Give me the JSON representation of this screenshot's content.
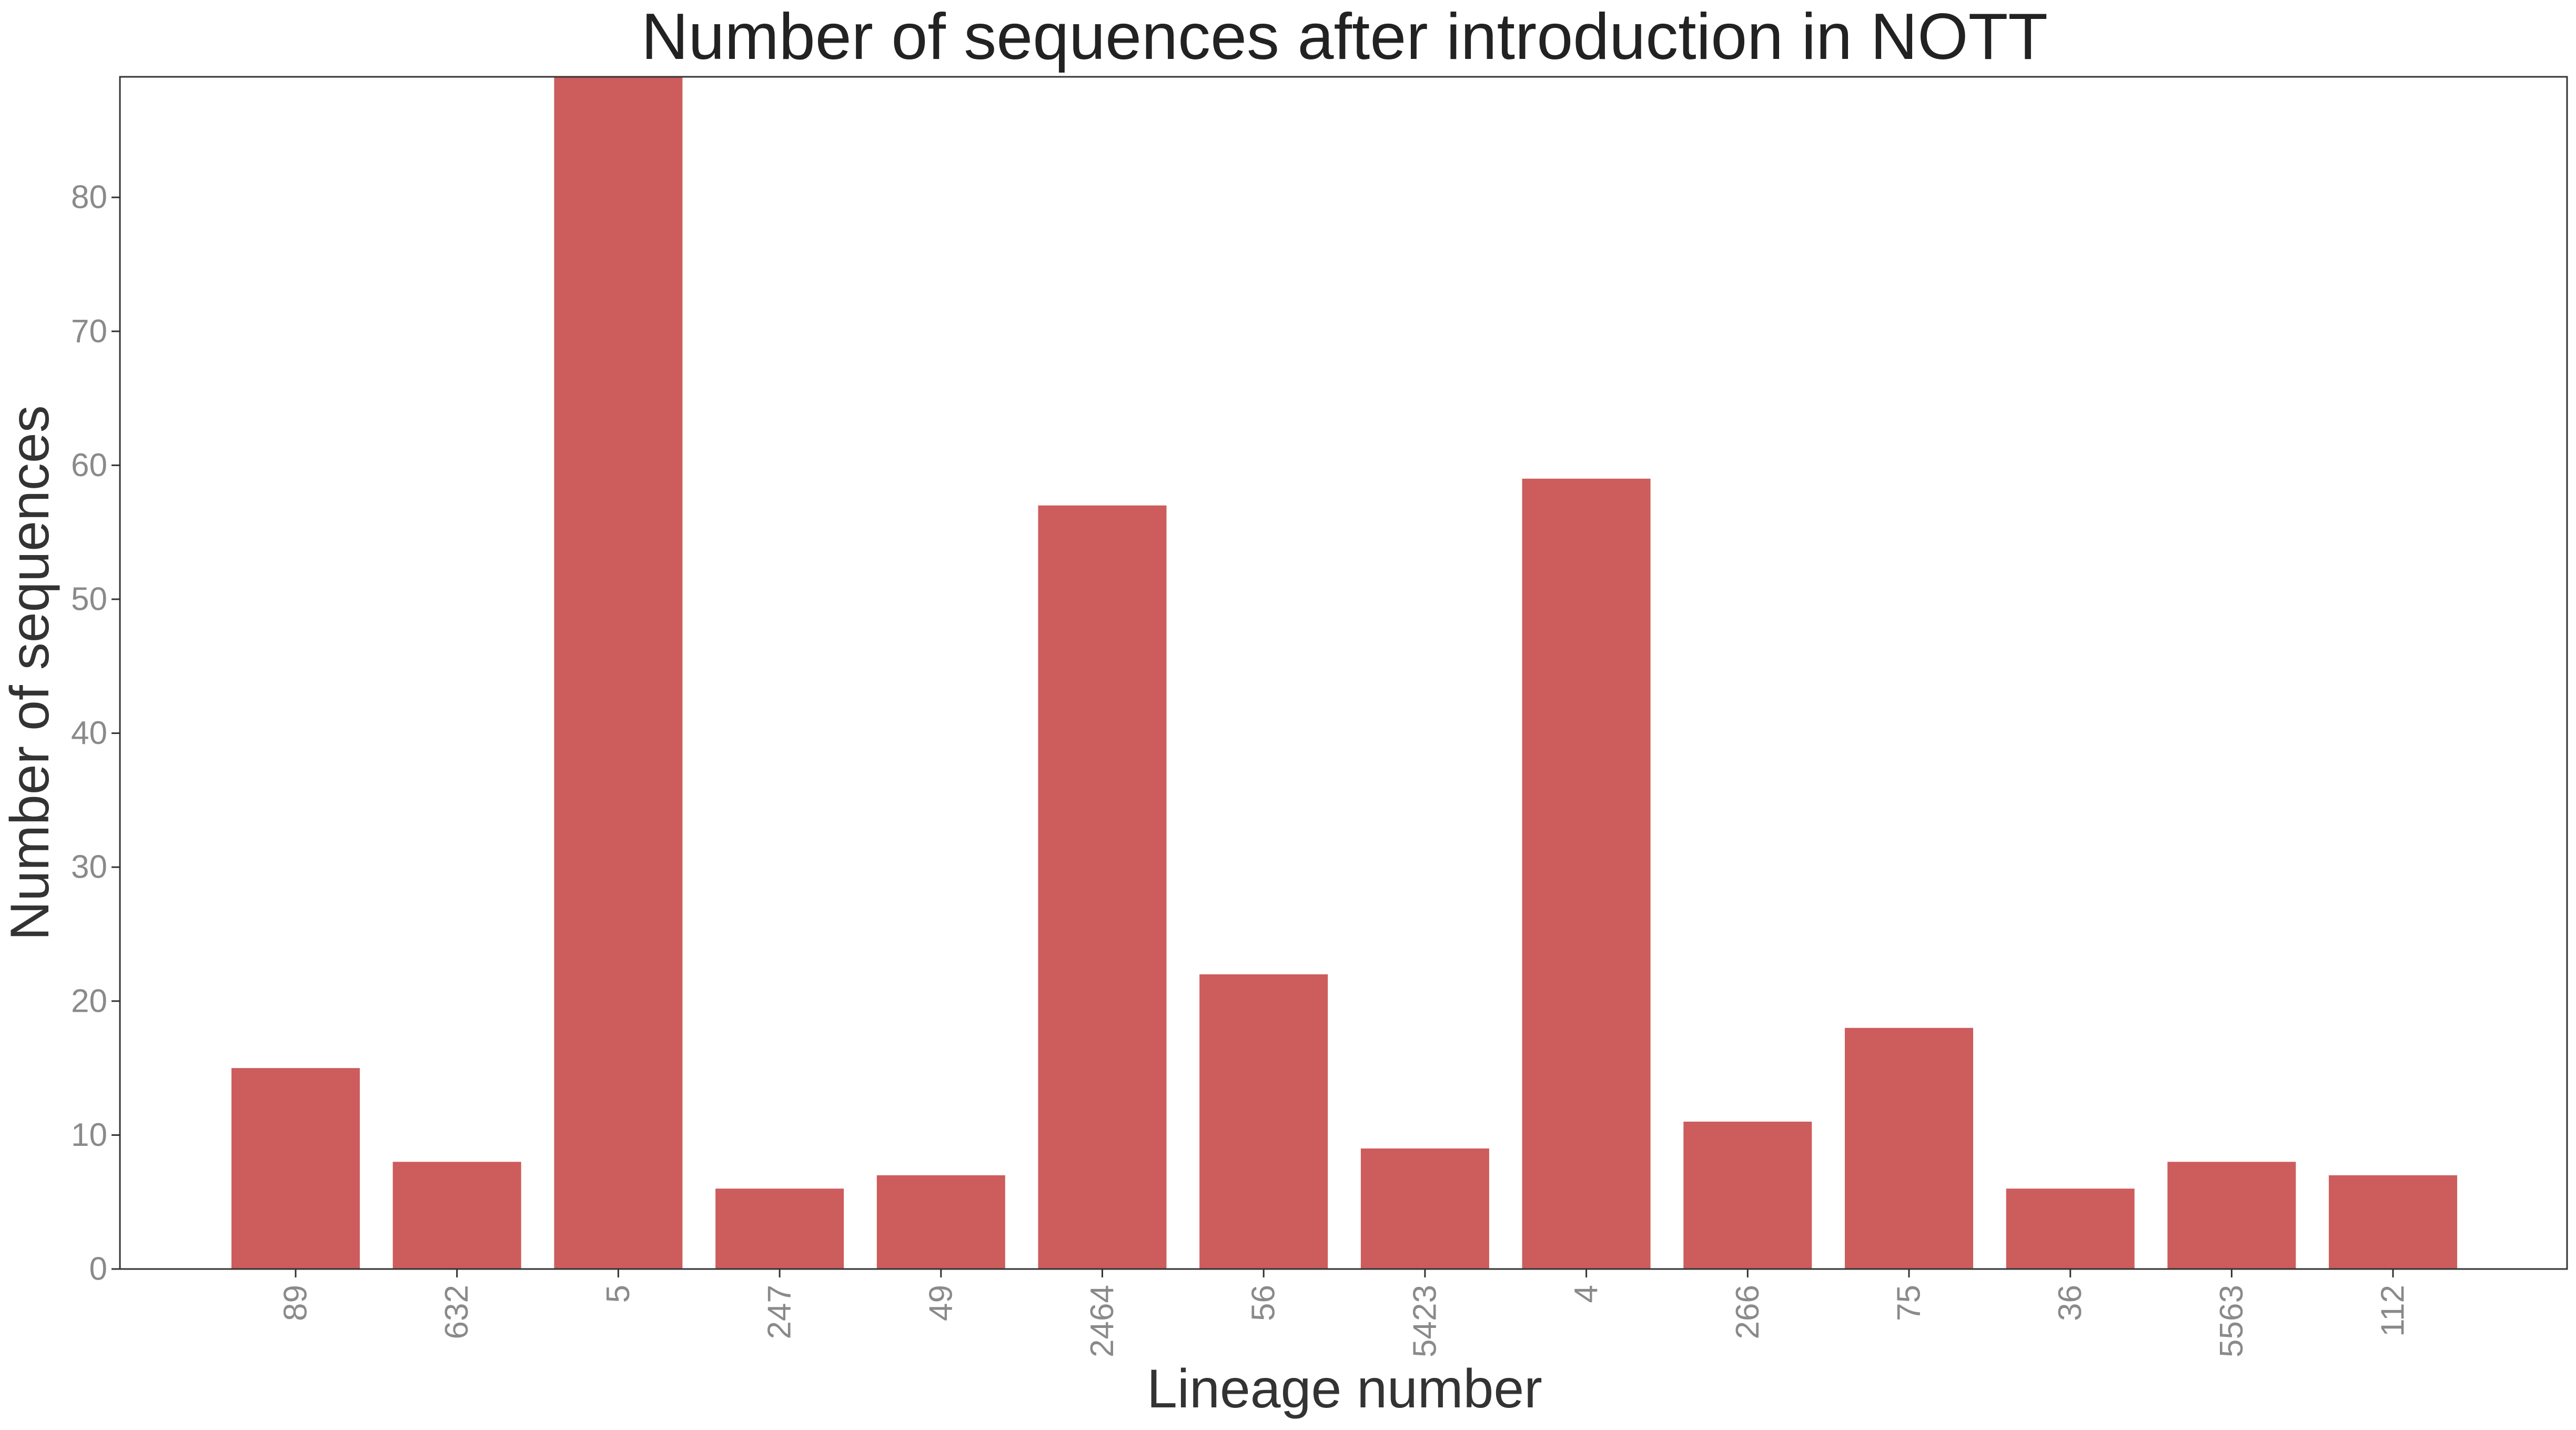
{
  "chart_data": {
    "type": "bar",
    "title": "Number of sequences after introduction in NOTT",
    "xlabel": "Lineage number",
    "ylabel": "Number of sequences",
    "categories": [
      "89",
      "632",
      "5",
      "247",
      "49",
      "2464",
      "56",
      "5423",
      "4",
      "266",
      "75",
      "36",
      "5563",
      "112"
    ],
    "values": [
      15,
      8,
      89,
      6,
      7,
      57,
      22,
      9,
      59,
      11,
      18,
      6,
      8,
      7
    ],
    "ylim": [
      0,
      89
    ],
    "yticks": [
      0,
      10,
      20,
      30,
      40,
      50,
      60,
      70,
      80
    ],
    "grid": false,
    "legend": "none",
    "colors": {
      "bar": "#cd5c5c",
      "axis": "#333333",
      "tick_label": "#8a8a8a",
      "title": "#222222"
    }
  }
}
